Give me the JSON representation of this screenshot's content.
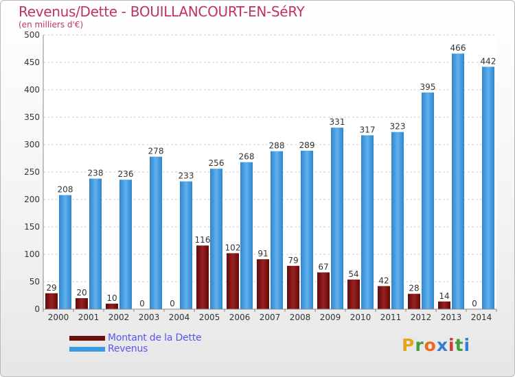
{
  "header": {
    "title": "Revenus/Dette - BOUILLANCOURT-EN-SéRY",
    "subtitle": "(en milliers d'€)"
  },
  "colors": {
    "title": "#c0306a",
    "debt": "#8b1a1a",
    "revenue": "#3f9be0",
    "legend_text": "#5a55f0"
  },
  "legend": {
    "items": [
      {
        "label": "Montant de la Dette",
        "color": "#7a1010"
      },
      {
        "label": "Revenus",
        "color": "#3f9be0"
      }
    ]
  },
  "logo": {
    "text": "Proxiti"
  },
  "chart_data": {
    "type": "bar",
    "categories": [
      "2000",
      "2001",
      "2002",
      "2003",
      "2004",
      "2005",
      "2006",
      "2007",
      "2008",
      "2009",
      "2010",
      "2011",
      "2012",
      "2013",
      "2014"
    ],
    "series": [
      {
        "name": "Montant de la Dette",
        "values": [
          29,
          20,
          10,
          0,
          0,
          116,
          102,
          91,
          79,
          67,
          54,
          42,
          28,
          14,
          0
        ]
      },
      {
        "name": "Revenus",
        "values": [
          208,
          238,
          236,
          278,
          233,
          256,
          268,
          288,
          289,
          331,
          317,
          323,
          395,
          466,
          442
        ]
      }
    ],
    "yticks": [
      0,
      50,
      100,
      150,
      200,
      250,
      300,
      350,
      400,
      450,
      500
    ],
    "ylim": [
      0,
      500
    ],
    "grid": true,
    "legend_position": "bottom-left",
    "data_labels": true
  }
}
